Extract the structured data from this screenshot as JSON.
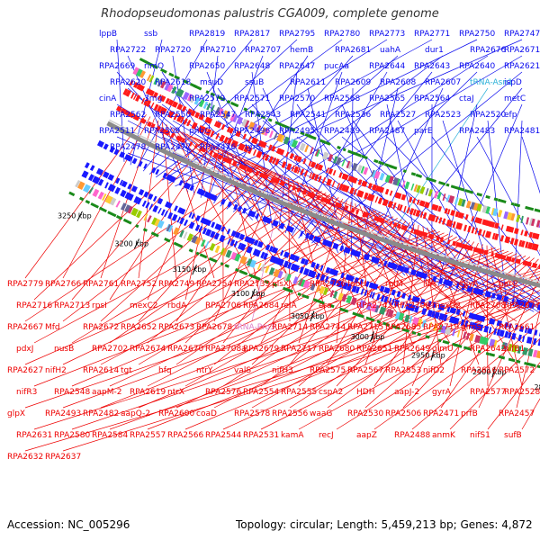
{
  "title": "Rhodopseudomonas palustris CGA009, complete genome",
  "footer": {
    "accession": "Accession: NC_005296",
    "summary": "Topology: circular; Length: 5,459,213 bp; Genes: 4,872"
  },
  "colors": {
    "forward_label": "#0a0aee",
    "reverse_label": "#ee0000",
    "trna_forward": "#2ab0d8",
    "trna_reverse": "#e080c8",
    "backbone": "#8a8a8a",
    "gc_skew": "#1a8a1a"
  },
  "bp_ticks": [
    {
      "label": "3250 kbp"
    },
    {
      "label": "3200 kbp"
    },
    {
      "label": "3150 kbp"
    },
    {
      "label": "3100 kbp"
    },
    {
      "label": "3050 kbp"
    },
    {
      "label": "3000 kbp"
    },
    {
      "label": "2950 kbp"
    },
    {
      "label": "2900 kbp"
    },
    {
      "label": "2850 kbp"
    },
    {
      "label": "2800 kbp"
    }
  ],
  "forward_genes": [
    "lppB",
    "ssb",
    "RPA2819",
    "RPA2817",
    "RPA2795",
    "RPA2780",
    "RPA2773",
    "RPA2771",
    "RPA2750",
    "RPA2747",
    "RPA2722",
    "RPA2720",
    "RPA2710",
    "RPA2707",
    "hemB",
    "RPA2681",
    "uahA",
    "dur1",
    "RPA2676",
    "RPA2671",
    "RPA2669",
    "rimO",
    "RPA2650",
    "RPA2648",
    "RPA2647",
    "pucAa",
    "RPA2644",
    "RPA2643",
    "RPA2640",
    "RPA2621",
    "RPA2620",
    "RPA2618",
    "msuD",
    "ssuB",
    "RPA2611",
    "RPA2609",
    "RPA2608",
    "RPA2607",
    "tRNA-Asn1",
    "ispD",
    "cinA",
    "3mg",
    "RPA2579",
    "RPA2571",
    "RPA2570",
    "RPA2568",
    "RPA2565",
    "RPA2564",
    "ctaJ",
    "metC",
    "RPA2562",
    "RPA2550",
    "RPA2547",
    "RPA2543",
    "RPA2541",
    "RPA2536",
    "RPA2527",
    "RPA2523",
    "RPA2520",
    "efp",
    "RPA2511",
    "RPA2509",
    "phbC",
    "RPA2496",
    "RPA2495",
    "RPA2489",
    "RPA2487",
    "parE",
    "RPA2483",
    "RPA2481",
    "RPA2478",
    "RPA2477",
    "RPA2476",
    "tyrS"
  ],
  "reverse_genes": [
    "RPA2779",
    "RPA2766",
    "RPA2761",
    "RPA2752",
    "RPA2749",
    "RPA2754",
    "RPA2739",
    "plsX",
    "RPA2756",
    "fabH",
    "rplM",
    "ilfA",
    "glyA",
    "parC",
    "RPA2716",
    "RPA2713",
    "rpsI",
    "mexC2",
    "rbdA",
    "RPA2706",
    "RPA2684",
    "relA",
    "era",
    "RPA2743",
    "RPA2709",
    "mexD2",
    "RPA2708",
    "RPA2677",
    "RPA2667",
    "Mfd",
    "RPA2672",
    "RPA2652",
    "RPA2673",
    "RPA2678",
    "tRNA-Pro3",
    "RPA2714",
    "RPA2744",
    "RPA2715",
    "RPA2685",
    "RPA2719",
    "glmS",
    "RPA2661",
    "pdxJ",
    "nusB",
    "RPA2702",
    "RPA2674",
    "RPA2670",
    "RPA2708a",
    "RPA2679",
    "RPA2717",
    "RPA2680",
    "RPA2651",
    "RPA2649",
    "glmU",
    "RPA2642",
    "nifB1",
    "RPA2627",
    "nifH2",
    "RPA2614",
    "tgt",
    "hfq",
    "ntrY",
    "valS",
    "nifH3",
    "RPA2575",
    "RPA2567",
    "RPA2553",
    "nifD2",
    "RPA2616",
    "RPA2572",
    "nifR3",
    "RPA2548",
    "aapM-2",
    "RPA2619",
    "ntrX",
    "RPA2576",
    "RPA2554",
    "RPA2555",
    "cspA2",
    "HDH",
    "aapJ-2",
    "gyrA",
    "RPA2577",
    "RPA2528",
    "glpX",
    "RPA2493",
    "RPA2482",
    "aapQ-2",
    "RPA2600",
    "coaD",
    "RPA2578",
    "RPA2556",
    "waaG",
    "RPA2530",
    "RPA2506",
    "RPA2471",
    "prfB",
    "RPA2457",
    "RPA2631",
    "RPA2580",
    "RPA2584",
    "RPA2557",
    "RPA2566",
    "RPA2544",
    "RPA2531",
    "kamA",
    "recJ",
    "aapZ",
    "RPA2488",
    "anmK",
    "nifS1",
    "sufB",
    "RPA2632",
    "RPA2637"
  ]
}
